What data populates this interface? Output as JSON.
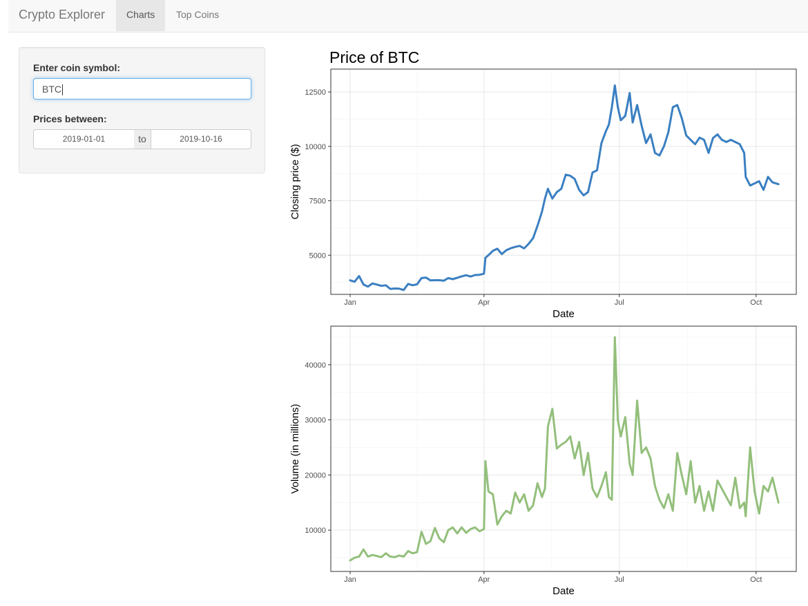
{
  "navbar": {
    "brand": "Crypto Explorer",
    "tabs": [
      {
        "label": "Charts",
        "active": true
      },
      {
        "label": "Top Coins",
        "active": false
      }
    ]
  },
  "sidebar": {
    "symbol_label": "Enter coin symbol:",
    "symbol_value": "BTC",
    "dates_label": "Prices between:",
    "date_start": "2019-01-01",
    "date_sep": "to",
    "date_end": "2019-10-16"
  },
  "colors": {
    "price_line": "#3a7fc1",
    "volume_line": "#93bf7b"
  },
  "chart_data": [
    {
      "type": "line",
      "title": "Price of BTC",
      "xlabel": "Date",
      "ylabel": "Closing price ($)",
      "xticks": [
        "Jan",
        "Apr",
        "Jul",
        "Oct"
      ],
      "xtick_dates": [
        "2019-01-01",
        "2019-04-01",
        "2019-07-01",
        "2019-10-01"
      ],
      "yticks": [
        5000,
        7500,
        10000,
        12500
      ],
      "xlim": [
        "2018-12-19",
        "2019-10-28"
      ],
      "ylim": [
        3200,
        13550
      ],
      "grid": true,
      "x": [
        "2019-01-01",
        "2019-01-04",
        "2019-01-07",
        "2019-01-10",
        "2019-01-13",
        "2019-01-16",
        "2019-01-19",
        "2019-01-22",
        "2019-01-25",
        "2019-01-28",
        "2019-01-31",
        "2019-02-03",
        "2019-02-06",
        "2019-02-09",
        "2019-02-12",
        "2019-02-15",
        "2019-02-18",
        "2019-02-21",
        "2019-02-24",
        "2019-02-27",
        "2019-03-02",
        "2019-03-05",
        "2019-03-08",
        "2019-03-11",
        "2019-03-14",
        "2019-03-17",
        "2019-03-20",
        "2019-03-23",
        "2019-03-26",
        "2019-03-29",
        "2019-04-01",
        "2019-04-02",
        "2019-04-04",
        "2019-04-07",
        "2019-04-10",
        "2019-04-13",
        "2019-04-16",
        "2019-04-19",
        "2019-04-22",
        "2019-04-25",
        "2019-04-28",
        "2019-05-01",
        "2019-05-04",
        "2019-05-07",
        "2019-05-10",
        "2019-05-12",
        "2019-05-14",
        "2019-05-17",
        "2019-05-20",
        "2019-05-23",
        "2019-05-26",
        "2019-05-29",
        "2019-06-01",
        "2019-06-04",
        "2019-06-07",
        "2019-06-10",
        "2019-06-13",
        "2019-06-16",
        "2019-06-19",
        "2019-06-22",
        "2019-06-24",
        "2019-06-26",
        "2019-06-28",
        "2019-06-30",
        "2019-07-02",
        "2019-07-05",
        "2019-07-08",
        "2019-07-10",
        "2019-07-13",
        "2019-07-16",
        "2019-07-19",
        "2019-07-22",
        "2019-07-25",
        "2019-07-28",
        "2019-07-31",
        "2019-08-03",
        "2019-08-06",
        "2019-08-09",
        "2019-08-12",
        "2019-08-15",
        "2019-08-18",
        "2019-08-21",
        "2019-08-24",
        "2019-08-27",
        "2019-08-30",
        "2019-09-02",
        "2019-09-05",
        "2019-09-08",
        "2019-09-11",
        "2019-09-14",
        "2019-09-17",
        "2019-09-20",
        "2019-09-23",
        "2019-09-24",
        "2019-09-27",
        "2019-09-30",
        "2019-10-03",
        "2019-10-06",
        "2019-10-09",
        "2019-10-12",
        "2019-10-16"
      ],
      "series": [
        {
          "values": [
            3843,
            3780,
            4040,
            3650,
            3560,
            3700,
            3650,
            3590,
            3620,
            3450,
            3470,
            3460,
            3400,
            3680,
            3620,
            3660,
            3950,
            3970,
            3840,
            3850,
            3850,
            3830,
            3950,
            3900,
            3960,
            4030,
            4080,
            4020,
            4090,
            4100,
            4150,
            4880,
            5000,
            5200,
            5300,
            5050,
            5230,
            5320,
            5380,
            5430,
            5310,
            5520,
            5780,
            6350,
            7000,
            7600,
            8050,
            7600,
            7900,
            8050,
            8700,
            8650,
            8500,
            8000,
            7750,
            7900,
            8800,
            8900,
            10150,
            10700,
            11000,
            11800,
            12800,
            11800,
            11200,
            11400,
            12450,
            11100,
            11900,
            10950,
            10150,
            10550,
            9700,
            9580,
            10000,
            10650,
            11800,
            11900,
            11300,
            10500,
            10300,
            10100,
            10400,
            10300,
            9700,
            10380,
            10550,
            10300,
            10200,
            10300,
            10200,
            10100,
            9700,
            8600,
            8200,
            8300,
            8400,
            8000,
            8600,
            8350,
            8260
          ]
        }
      ]
    },
    {
      "type": "line",
      "title": "",
      "xlabel": "Date",
      "ylabel": "Volume (in millions)",
      "xticks": [
        "Jan",
        "Apr",
        "Jul",
        "Oct"
      ],
      "xtick_dates": [
        "2019-01-01",
        "2019-04-01",
        "2019-07-01",
        "2019-10-01"
      ],
      "yticks": [
        10000,
        20000,
        30000,
        40000
      ],
      "xlim": [
        "2018-12-19",
        "2019-10-28"
      ],
      "ylim": [
        2500,
        47000
      ],
      "grid": true,
      "x": [
        "2019-01-01",
        "2019-01-04",
        "2019-01-07",
        "2019-01-10",
        "2019-01-13",
        "2019-01-16",
        "2019-01-19",
        "2019-01-22",
        "2019-01-25",
        "2019-01-28",
        "2019-01-31",
        "2019-02-03",
        "2019-02-06",
        "2019-02-09",
        "2019-02-12",
        "2019-02-15",
        "2019-02-18",
        "2019-02-21",
        "2019-02-24",
        "2019-02-27",
        "2019-03-02",
        "2019-03-05",
        "2019-03-08",
        "2019-03-11",
        "2019-03-14",
        "2019-03-17",
        "2019-03-20",
        "2019-03-23",
        "2019-03-26",
        "2019-03-29",
        "2019-04-01",
        "2019-04-02",
        "2019-04-04",
        "2019-04-07",
        "2019-04-10",
        "2019-04-13",
        "2019-04-16",
        "2019-04-19",
        "2019-04-22",
        "2019-04-25",
        "2019-04-28",
        "2019-05-01",
        "2019-05-04",
        "2019-05-07",
        "2019-05-10",
        "2019-05-12",
        "2019-05-14",
        "2019-05-17",
        "2019-05-20",
        "2019-05-23",
        "2019-05-26",
        "2019-05-29",
        "2019-06-01",
        "2019-06-04",
        "2019-06-07",
        "2019-06-10",
        "2019-06-13",
        "2019-06-16",
        "2019-06-19",
        "2019-06-22",
        "2019-06-24",
        "2019-06-26",
        "2019-06-28",
        "2019-06-30",
        "2019-07-02",
        "2019-07-05",
        "2019-07-08",
        "2019-07-10",
        "2019-07-13",
        "2019-07-16",
        "2019-07-19",
        "2019-07-22",
        "2019-07-25",
        "2019-07-28",
        "2019-07-31",
        "2019-08-03",
        "2019-08-06",
        "2019-08-09",
        "2019-08-12",
        "2019-08-15",
        "2019-08-18",
        "2019-08-21",
        "2019-08-24",
        "2019-08-27",
        "2019-08-30",
        "2019-09-02",
        "2019-09-05",
        "2019-09-08",
        "2019-09-11",
        "2019-09-14",
        "2019-09-17",
        "2019-09-20",
        "2019-09-23",
        "2019-09-24",
        "2019-09-27",
        "2019-09-30",
        "2019-10-03",
        "2019-10-06",
        "2019-10-09",
        "2019-10-12",
        "2019-10-16"
      ],
      "series": [
        {
          "values": [
            4500,
            5000,
            5200,
            6500,
            5200,
            5500,
            5300,
            5100,
            5800,
            5200,
            5100,
            5400,
            5200,
            6200,
            5800,
            6000,
            9700,
            7500,
            8000,
            10400,
            8500,
            7800,
            10000,
            10500,
            9400,
            10500,
            9500,
            10200,
            10500,
            9800,
            10200,
            22500,
            17000,
            16500,
            11000,
            12500,
            13500,
            13000,
            16800,
            15000,
            16500,
            13500,
            14500,
            18500,
            16000,
            17500,
            28800,
            32000,
            24800,
            25500,
            26000,
            27000,
            23000,
            26000,
            20000,
            24000,
            17500,
            16000,
            18000,
            20500,
            16000,
            15500,
            45000,
            30000,
            27000,
            30500,
            22000,
            20000,
            33500,
            24000,
            25000,
            23000,
            18000,
            15500,
            14000,
            16500,
            13500,
            24000,
            20000,
            16500,
            22500,
            15000,
            18000,
            13500,
            17000,
            13500,
            19000,
            17500,
            16000,
            14500,
            19500,
            14000,
            15000,
            12500,
            25000,
            17000,
            13000,
            18000,
            17000,
            19500,
            15000
          ]
        }
      ]
    }
  ]
}
